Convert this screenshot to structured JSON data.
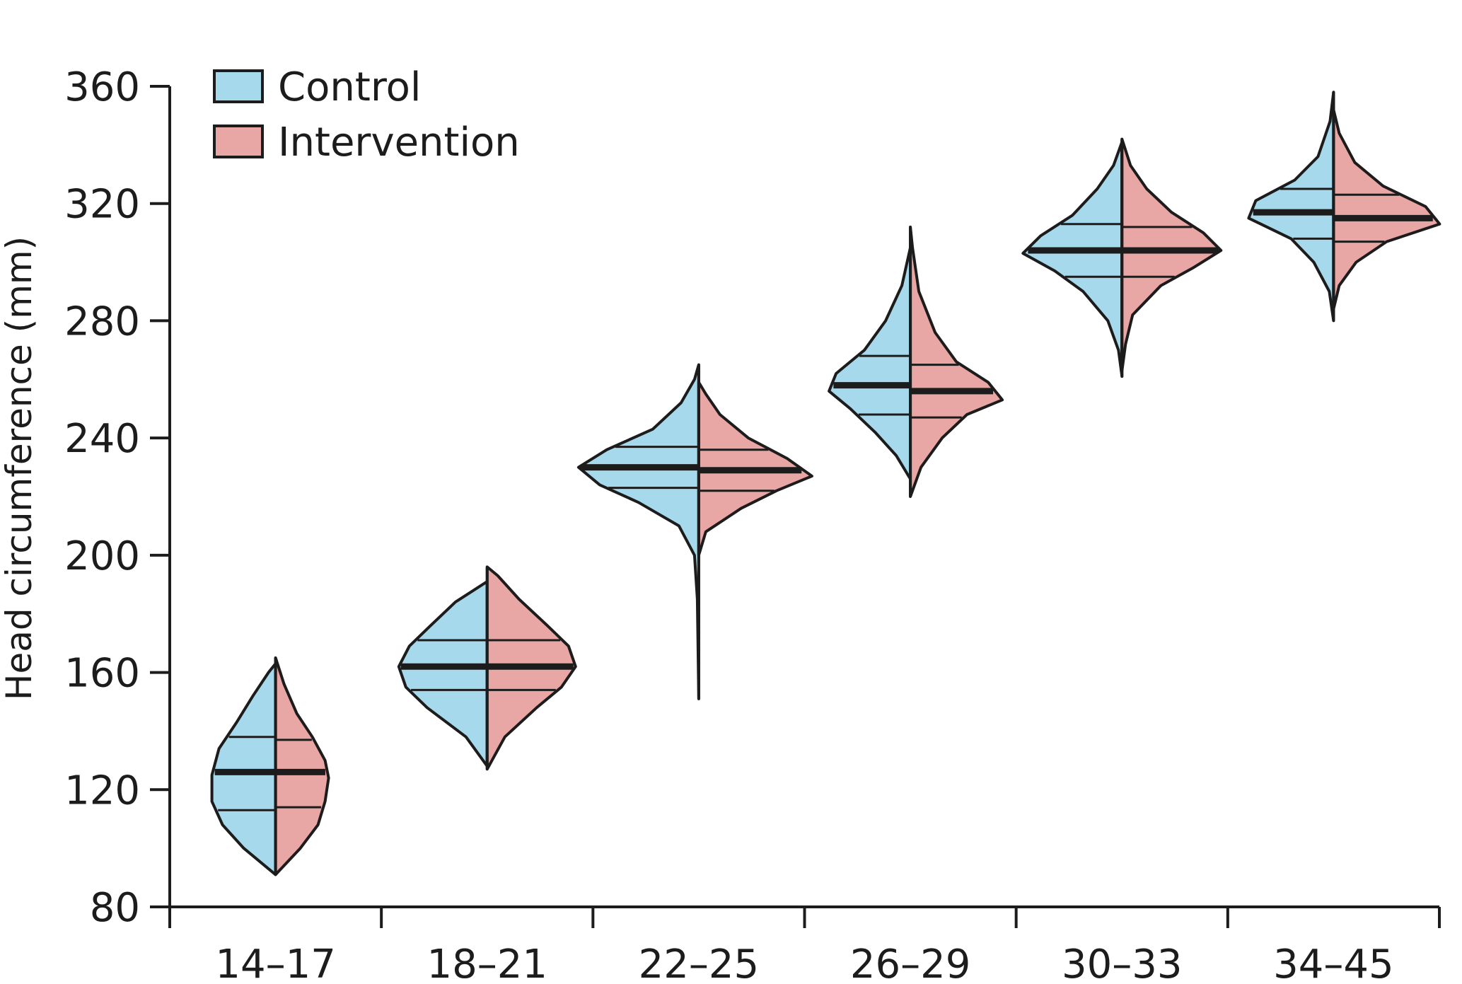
{
  "chart_data": {
    "type": "violin",
    "title": "",
    "xlabel": "",
    "ylabel": "Head circumference (mm)",
    "ylim": [
      80,
      360
    ],
    "yticks": [
      80,
      120,
      160,
      200,
      240,
      280,
      320,
      360
    ],
    "categories": [
      "14–17",
      "18–21",
      "22–25",
      "26–29",
      "30–33",
      "34–45"
    ],
    "legend_position": "top-left",
    "colors": {
      "control": "#a6d9ec",
      "intervention": "#e8a6a5",
      "outline": "#1c1c1c"
    },
    "series": [
      {
        "name": "Control",
        "side": "left",
        "stats": [
          {
            "min": 91,
            "q1": 113,
            "median": 126,
            "q3": 138,
            "max": 163
          },
          {
            "min": 128,
            "q1": 154,
            "median": 162,
            "q3": 171,
            "max": 191
          },
          {
            "min": 151,
            "q1": 223,
            "median": 230,
            "q3": 237,
            "max": 265
          },
          {
            "min": 226,
            "q1": 248,
            "median": 258,
            "q3": 268,
            "max": 305
          },
          {
            "min": 261,
            "q1": 295,
            "median": 304,
            "q3": 313,
            "max": 341
          },
          {
            "min": 280,
            "q1": 308,
            "median": 317,
            "q3": 325,
            "max": 358
          }
        ],
        "profiles": [
          [
            [
              91,
              0
            ],
            [
              100,
              45
            ],
            [
              108,
              75
            ],
            [
              116,
              90
            ],
            [
              125,
              90
            ],
            [
              134,
              80
            ],
            [
              143,
              55
            ],
            [
              152,
              32
            ],
            [
              160,
              10
            ],
            [
              163,
              0
            ]
          ],
          [
            [
              128,
              0
            ],
            [
              138,
              30
            ],
            [
              148,
              85
            ],
            [
              155,
              115
            ],
            [
              162,
              125
            ],
            [
              169,
              110
            ],
            [
              176,
              80
            ],
            [
              184,
              45
            ],
            [
              191,
              0
            ]
          ],
          [
            [
              151,
              0
            ],
            [
              185,
              2
            ],
            [
              200,
              6
            ],
            [
              210,
              28
            ],
            [
              218,
              85
            ],
            [
              224,
              140
            ],
            [
              230,
              170
            ],
            [
              236,
              130
            ],
            [
              243,
              65
            ],
            [
              252,
              25
            ],
            [
              260,
              6
            ],
            [
              265,
              0
            ]
          ],
          [
            [
              226,
              0
            ],
            [
              234,
              20
            ],
            [
              242,
              50
            ],
            [
              250,
              85
            ],
            [
              256,
              115
            ],
            [
              262,
              105
            ],
            [
              270,
              65
            ],
            [
              280,
              35
            ],
            [
              292,
              12
            ],
            [
              305,
              0
            ]
          ],
          [
            [
              261,
              0
            ],
            [
              270,
              5
            ],
            [
              280,
              20
            ],
            [
              290,
              55
            ],
            [
              297,
              95
            ],
            [
              303,
              140
            ],
            [
              309,
              115
            ],
            [
              316,
              70
            ],
            [
              325,
              35
            ],
            [
              333,
              12
            ],
            [
              341,
              0
            ]
          ],
          [
            [
              280,
              0
            ],
            [
              290,
              6
            ],
            [
              300,
              28
            ],
            [
              308,
              60
            ],
            [
              315,
              120
            ],
            [
              321,
              110
            ],
            [
              328,
              55
            ],
            [
              336,
              22
            ],
            [
              348,
              5
            ],
            [
              358,
              0
            ]
          ]
        ]
      },
      {
        "name": "Intervention",
        "side": "right",
        "stats": [
          {
            "min": 91,
            "q1": 114,
            "median": 126,
            "q3": 137,
            "max": 165
          },
          {
            "min": 127,
            "q1": 154,
            "median": 162,
            "q3": 171,
            "max": 196
          },
          {
            "min": 200,
            "q1": 222,
            "median": 229,
            "q3": 236,
            "max": 259
          },
          {
            "min": 220,
            "q1": 247,
            "median": 256,
            "q3": 265,
            "max": 312
          },
          {
            "min": 263,
            "q1": 295,
            "median": 304,
            "q3": 312,
            "max": 342
          },
          {
            "min": 284,
            "q1": 307,
            "median": 315,
            "q3": 323,
            "max": 352
          }
        ],
        "profiles": [
          [
            [
              91,
              0
            ],
            [
              100,
              35
            ],
            [
              108,
              60
            ],
            [
              116,
              70
            ],
            [
              124,
              75
            ],
            [
              130,
              70
            ],
            [
              138,
              52
            ],
            [
              146,
              30
            ],
            [
              156,
              12
            ],
            [
              165,
              0
            ]
          ],
          [
            [
              127,
              0
            ],
            [
              138,
              25
            ],
            [
              148,
              70
            ],
            [
              155,
              105
            ],
            [
              162,
              125
            ],
            [
              169,
              115
            ],
            [
              176,
              85
            ],
            [
              185,
              45
            ],
            [
              193,
              15
            ],
            [
              196,
              0
            ]
          ],
          [
            [
              200,
              0
            ],
            [
              208,
              10
            ],
            [
              216,
              60
            ],
            [
              222,
              110
            ],
            [
              227,
              160
            ],
            [
              233,
              125
            ],
            [
              240,
              70
            ],
            [
              248,
              30
            ],
            [
              255,
              10
            ],
            [
              259,
              0
            ]
          ],
          [
            [
              220,
              0
            ],
            [
              230,
              15
            ],
            [
              240,
              45
            ],
            [
              248,
              80
            ],
            [
              253,
              130
            ],
            [
              259,
              110
            ],
            [
              266,
              65
            ],
            [
              276,
              35
            ],
            [
              290,
              12
            ],
            [
              305,
              3
            ],
            [
              312,
              0
            ]
          ],
          [
            [
              263,
              0
            ],
            [
              272,
              5
            ],
            [
              282,
              15
            ],
            [
              292,
              55
            ],
            [
              298,
              100
            ],
            [
              304,
              140
            ],
            [
              310,
              115
            ],
            [
              317,
              70
            ],
            [
              325,
              35
            ],
            [
              333,
              12
            ],
            [
              342,
              0
            ]
          ],
          [
            [
              284,
              0
            ],
            [
              292,
              8
            ],
            [
              300,
              32
            ],
            [
              307,
              75
            ],
            [
              313,
              150
            ],
            [
              319,
              130
            ],
            [
              326,
              70
            ],
            [
              334,
              30
            ],
            [
              344,
              8
            ],
            [
              352,
              0
            ]
          ]
        ]
      }
    ]
  }
}
